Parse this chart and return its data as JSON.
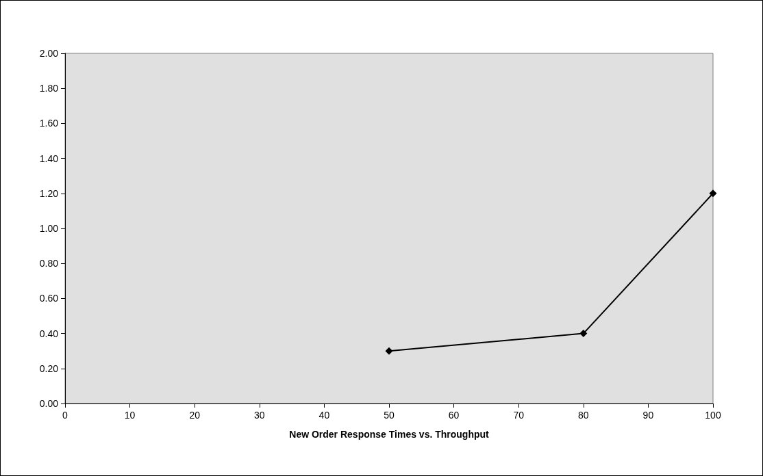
{
  "chart_data": {
    "type": "line",
    "xlabel": "New Order Response Times vs. Throughput",
    "x": [
      50,
      80,
      100
    ],
    "series": [
      {
        "color": "#000000",
        "values": [
          0.3,
          0.4,
          1.2
        ]
      }
    ],
    "xlim": [
      0,
      100
    ],
    "xticks": [
      0,
      10,
      20,
      30,
      40,
      50,
      60,
      70,
      80,
      90,
      100
    ],
    "ylim": [
      0,
      2
    ],
    "yticks": [
      {
        "value": 0,
        "label": "0.00"
      },
      {
        "value": 0.2,
        "label": "0.20"
      },
      {
        "value": 0.4,
        "label": "0.40"
      },
      {
        "value": 0.6,
        "label": "0.60"
      },
      {
        "value": 0.8,
        "label": "0.80"
      },
      {
        "value": 1,
        "label": "1.00"
      },
      {
        "value": 1.2,
        "label": "1.20"
      },
      {
        "value": 1.4,
        "label": "1.40"
      },
      {
        "value": 1.6,
        "label": "1.60"
      },
      {
        "value": 1.8,
        "label": "1.80"
      },
      {
        "value": 2,
        "label": "2.00"
      }
    ],
    "grid": false,
    "marker": "diamond",
    "line_style": "solid"
  }
}
